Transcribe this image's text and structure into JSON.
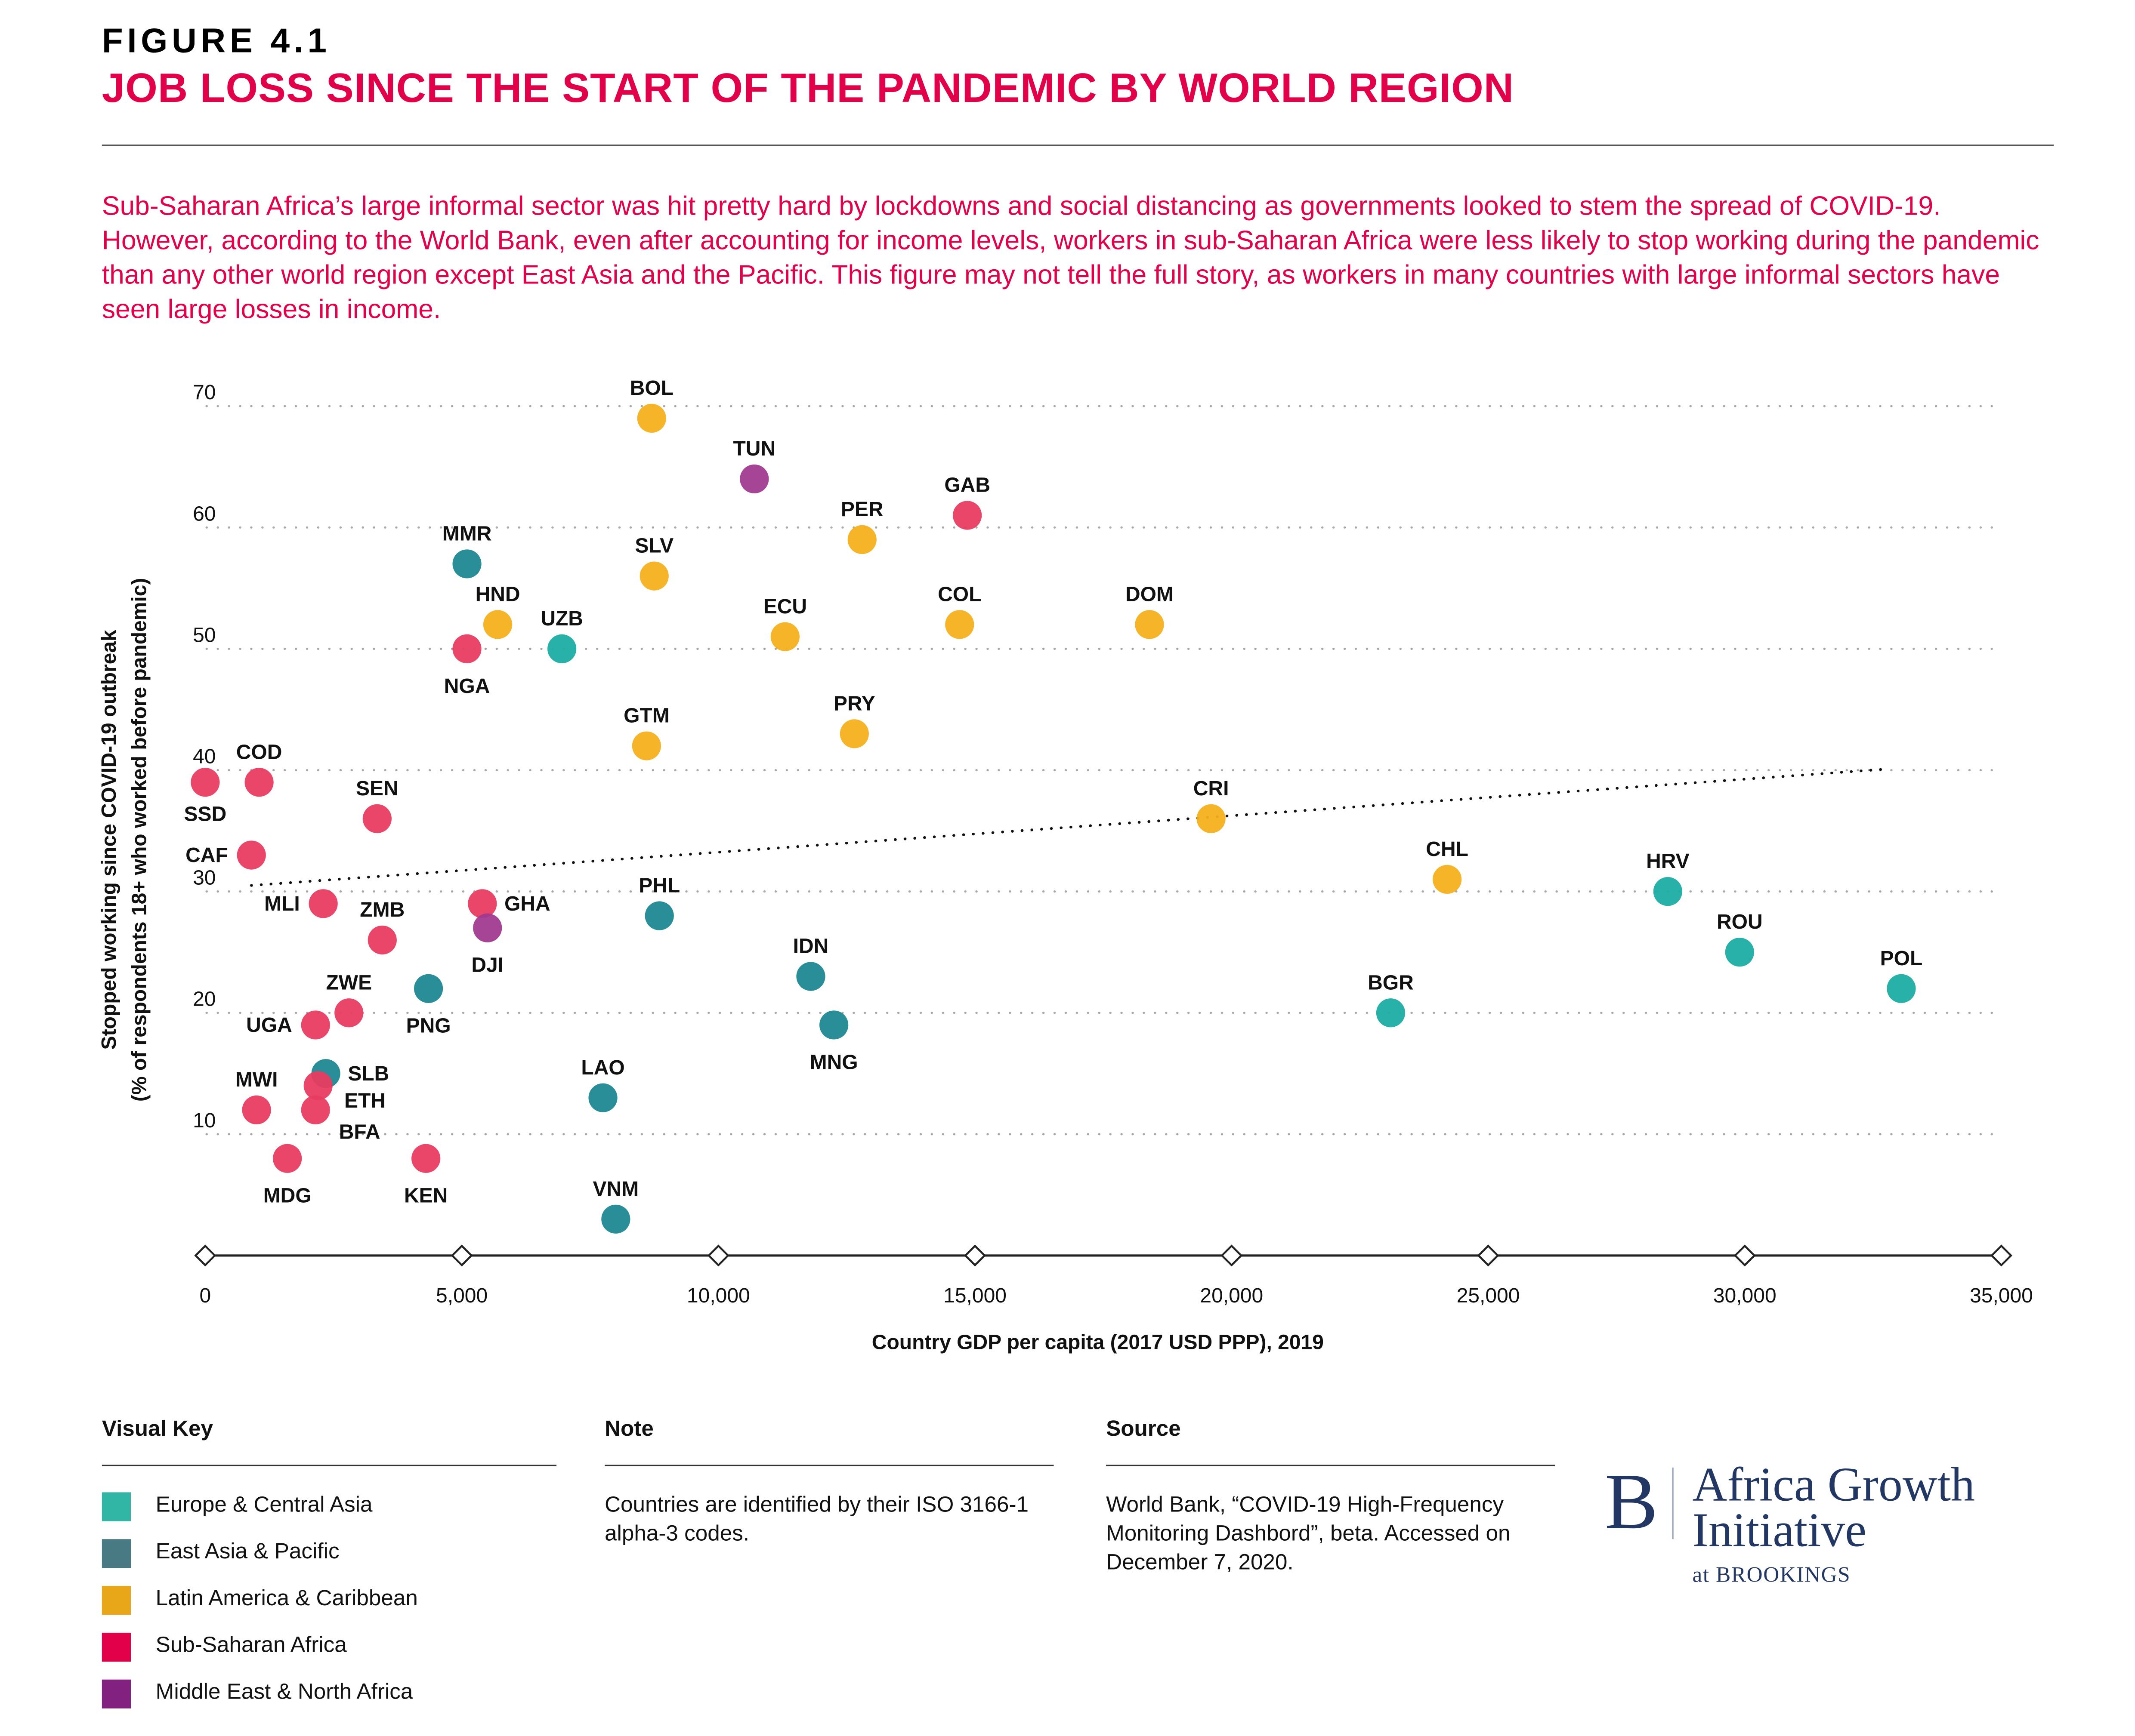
{
  "header": {
    "figure_label": "FIGURE 4.1",
    "title": "JOB LOSS SINCE THE START OF THE PANDEMIC BY WORLD REGION",
    "intro": "Sub-Saharan Africa’s large informal sector was hit pretty hard by lockdowns and social distancing as governments looked to stem the spread of COVID-19. However, according to the World Bank, even after accounting for income levels, workers in sub-Saharan Africa were less likely to stop working during the pandemic than any other world region except East Asia and the Pacific. This figure may not tell the full story, as workers in many countries with large informal sectors have seen large losses in income."
  },
  "colors": {
    "title_accent": "#E3004A",
    "Europe & Central Asia": "#1CADA3",
    "East Asia & Pacific": "#1F8892",
    "Latin America & Caribbean": "#F6B01C",
    "Sub-Saharan Africa": "#E83C61",
    "Middle East & North Africa": "#A13A8F"
  },
  "chart_data": {
    "type": "scatter",
    "title": "Job loss since the start of the pandemic by world region",
    "xlabel": "Country GDP per capita (2017 USD PPP), 2019",
    "ylabel": "Stopped working since COVID-19 outbreak",
    "ylabel2": "(% of respondents 18+ who worked before pandemic)",
    "xlim": [
      0,
      35000
    ],
    "ylim": [
      0,
      70
    ],
    "x_ticks": [
      0,
      5000,
      10000,
      15000,
      20000,
      25000,
      30000,
      35000
    ],
    "x_tick_labels": [
      "0",
      "5,000",
      "10,000",
      "15,000",
      "20,000",
      "25,000",
      "30,000",
      "35,000"
    ],
    "y_ticks": [
      10,
      20,
      30,
      40,
      50,
      60,
      70
    ],
    "y_tick_labels": [
      "10",
      "20",
      "30",
      "40",
      "50",
      "60",
      "70"
    ],
    "grid": "horizontal dotted",
    "trendline": {
      "style": "dotted",
      "x": [
        900,
        32800
      ],
      "y": [
        30.5,
        40.1
      ]
    },
    "points": [
      {
        "code": "BOL",
        "region": "Latin America & Caribbean",
        "x": 8700,
        "y": 69,
        "label_pos": "top"
      },
      {
        "code": "TUN",
        "region": "Middle East & North Africa",
        "x": 10700,
        "y": 64,
        "label_pos": "top"
      },
      {
        "code": "GAB",
        "region": "Sub-Saharan Africa",
        "x": 14850,
        "y": 61,
        "label_pos": "top"
      },
      {
        "code": "PER",
        "region": "Latin America & Caribbean",
        "x": 12800,
        "y": 59,
        "label_pos": "top"
      },
      {
        "code": "MMR",
        "region": "East Asia & Pacific",
        "x": 5100,
        "y": 57,
        "label_pos": "top"
      },
      {
        "code": "SLV",
        "region": "Latin America & Caribbean",
        "x": 8750,
        "y": 56,
        "label_pos": "top"
      },
      {
        "code": "HND",
        "region": "Latin America & Caribbean",
        "x": 5700,
        "y": 52,
        "label_pos": "top"
      },
      {
        "code": "COL",
        "region": "Latin America & Caribbean",
        "x": 14700,
        "y": 52,
        "label_pos": "top"
      },
      {
        "code": "DOM",
        "region": "Latin America & Caribbean",
        "x": 18400,
        "y": 52,
        "label_pos": "top"
      },
      {
        "code": "ECU",
        "region": "Latin America & Caribbean",
        "x": 11300,
        "y": 51,
        "label_pos": "top"
      },
      {
        "code": "UZB",
        "region": "Europe & Central Asia",
        "x": 6950,
        "y": 50,
        "label_pos": "top"
      },
      {
        "code": "NGA",
        "region": "Sub-Saharan Africa",
        "x": 5100,
        "y": 50,
        "label_pos": "bottom"
      },
      {
        "code": "PRY",
        "region": "Latin America & Caribbean",
        "x": 12650,
        "y": 43,
        "label_pos": "top"
      },
      {
        "code": "GTM",
        "region": "Latin America & Caribbean",
        "x": 8600,
        "y": 42,
        "label_pos": "top"
      },
      {
        "code": "SSD",
        "region": "Sub-Saharan Africa",
        "x": 0,
        "y": 39,
        "label_pos": "bottom"
      },
      {
        "code": "COD",
        "region": "Sub-Saharan Africa",
        "x": 1050,
        "y": 39,
        "label_pos": "top"
      },
      {
        "code": "SEN",
        "region": "Sub-Saharan Africa",
        "x": 3350,
        "y": 36,
        "label_pos": "top"
      },
      {
        "code": "CRI",
        "region": "Latin America & Caribbean",
        "x": 19600,
        "y": 36,
        "label_pos": "top"
      },
      {
        "code": "CAF",
        "region": "Sub-Saharan Africa",
        "x": 900,
        "y": 33,
        "label_pos": "left"
      },
      {
        "code": "CHL",
        "region": "Latin America & Caribbean",
        "x": 24200,
        "y": 31,
        "label_pos": "top"
      },
      {
        "code": "HRV",
        "region": "Europe & Central Asia",
        "x": 28500,
        "y": 30,
        "label_pos": "top"
      },
      {
        "code": "MLI",
        "region": "Sub-Saharan Africa",
        "x": 2300,
        "y": 29,
        "label_pos": "left"
      },
      {
        "code": "GHA",
        "region": "Sub-Saharan Africa",
        "x": 5400,
        "y": 29,
        "label_pos": "right"
      },
      {
        "code": "PHL",
        "region": "East Asia & Pacific",
        "x": 8850,
        "y": 28,
        "label_pos": "top"
      },
      {
        "code": "DJI",
        "region": "Middle East & North Africa",
        "x": 5500,
        "y": 27,
        "label_pos": "bottom"
      },
      {
        "code": "ZMB",
        "region": "Sub-Saharan Africa",
        "x": 3450,
        "y": 26,
        "label_pos": "top"
      },
      {
        "code": "ROU",
        "region": "Europe & Central Asia",
        "x": 29900,
        "y": 25,
        "label_pos": "top"
      },
      {
        "code": "IDN",
        "region": "East Asia & Pacific",
        "x": 11800,
        "y": 23,
        "label_pos": "top"
      },
      {
        "code": "POL",
        "region": "Europe & Central Asia",
        "x": 33050,
        "y": 22,
        "label_pos": "top"
      },
      {
        "code": "PNG",
        "region": "East Asia & Pacific",
        "x": 4350,
        "y": 22,
        "label_pos": "bottom"
      },
      {
        "code": "ZWE",
        "region": "Sub-Saharan Africa",
        "x": 2800,
        "y": 20,
        "label_pos": "top"
      },
      {
        "code": "BGR",
        "region": "Europe & Central Asia",
        "x": 23100,
        "y": 20,
        "label_pos": "top"
      },
      {
        "code": "UGA",
        "region": "Sub-Saharan Africa",
        "x": 2150,
        "y": 19,
        "label_pos": "left"
      },
      {
        "code": "MNG",
        "region": "East Asia & Pacific",
        "x": 12250,
        "y": 19,
        "label_pos": "bottom"
      },
      {
        "code": "SLB",
        "region": "East Asia & Pacific",
        "x": 2350,
        "y": 15,
        "label_pos": "right"
      },
      {
        "code": "ETH",
        "region": "Sub-Saharan Africa",
        "x": 2200,
        "y": 14,
        "label_pos": "right-low"
      },
      {
        "code": "LAO",
        "region": "East Asia & Pacific",
        "x": 7750,
        "y": 13,
        "label_pos": "top"
      },
      {
        "code": "MWI",
        "region": "Sub-Saharan Africa",
        "x": 1000,
        "y": 12,
        "label_pos": "top"
      },
      {
        "code": "BFA",
        "region": "Sub-Saharan Africa",
        "x": 2150,
        "y": 12,
        "label_pos": "right-lower"
      },
      {
        "code": "MDG",
        "region": "Sub-Saharan Africa",
        "x": 1600,
        "y": 8,
        "label_pos": "bottom"
      },
      {
        "code": "KEN",
        "region": "Sub-Saharan Africa",
        "x": 4300,
        "y": 8,
        "label_pos": "bottom"
      },
      {
        "code": "VNM",
        "region": "East Asia & Pacific",
        "x": 8000,
        "y": 3,
        "label_pos": "top"
      }
    ]
  },
  "footer": {
    "visual_key": {
      "heading": "Visual Key",
      "items": [
        {
          "label": "Europe & Central Asia",
          "color": "#31B5A5"
        },
        {
          "label": "East Asia & Pacific",
          "color": "#487A83"
        },
        {
          "label": "Latin America & Caribbean",
          "color": "#E7A718"
        },
        {
          "label": "Sub-Saharan Africa",
          "color": "#E3004A"
        },
        {
          "label": "Middle East & North Africa",
          "color": "#82217F"
        }
      ]
    },
    "note": {
      "heading": "Note",
      "text": "Countries are identified by their ISO 3166-1 alpha-3 codes."
    },
    "source": {
      "heading": "Source",
      "text": "World Bank, “COVID-19 High-Frequency Monitoring Dashbord”, beta. Accessed on December 7, 2020."
    },
    "logo": {
      "mark": "B",
      "name_line1": "Africa Growth",
      "name_line2": "Initiative",
      "sub": "at BROOKINGS"
    }
  }
}
